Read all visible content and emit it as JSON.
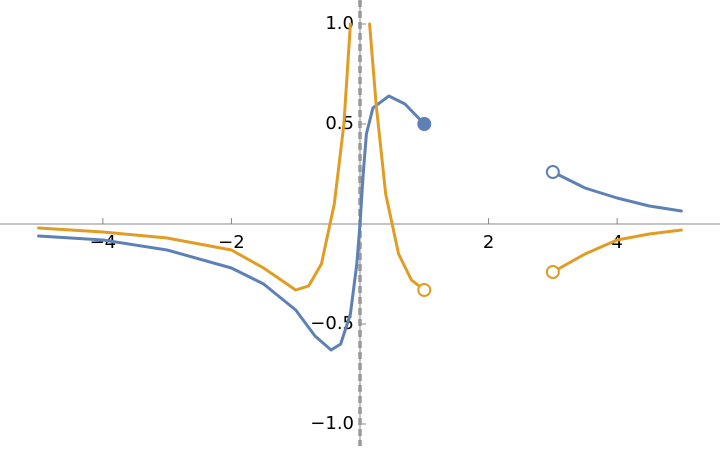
{
  "chart_data": {
    "type": "line",
    "xlim": [
      -5.6,
      5.6
    ],
    "ylim": [
      -1.11,
      1.12
    ],
    "xticks": [
      {
        "value": -4,
        "label": "−4"
      },
      {
        "value": -2,
        "label": "−2"
      },
      2,
      4
    ],
    "yticks": [
      {
        "value": -1.0,
        "label": "−1.0"
      },
      {
        "value": -0.5,
        "label": "−0.5"
      },
      0.5,
      {
        "value": 1.0,
        "label": "1.0"
      }
    ],
    "asymptote_x": 0,
    "series": [
      {
        "color": "#5e81b5",
        "x": [
          -5,
          -4,
          -3,
          -2,
          -1.5,
          -1,
          -0.7,
          -0.45,
          -0.3,
          -0.15,
          -0.05,
          0,
          0.05,
          0.1,
          0.2,
          0.45,
          0.7,
          1,
          2,
          3,
          3.5,
          4,
          4.5,
          5
        ],
        "values": [
          -0.06,
          -0.08,
          -0.13,
          -0.22,
          -0.3,
          -0.43,
          -0.56,
          -0.63,
          -0.6,
          -0.45,
          -0.2,
          0,
          0.25,
          0.45,
          0.58,
          0.64,
          0.6,
          0.5,
          null,
          0.26,
          0.18,
          0.13,
          0.09,
          0.065
        ]
      },
      {
        "color": "#e19c24",
        "x": [
          -5,
          -4,
          -3,
          -2,
          -1.5,
          -1,
          -0.8,
          -0.6,
          -0.4,
          -0.25,
          -0.15,
          0,
          0.15,
          0.25,
          0.4,
          0.6,
          0.8,
          1,
          2,
          3,
          3.5,
          4,
          4.5,
          5
        ],
        "values": [
          -0.02,
          -0.04,
          -0.07,
          -0.13,
          -0.22,
          -0.33,
          -0.31,
          -0.2,
          0.1,
          0.5,
          1.0,
          null,
          1.0,
          0.6,
          0.15,
          -0.15,
          -0.28,
          -0.33,
          null,
          -0.24,
          -0.15,
          -0.08,
          -0.05,
          -0.03
        ]
      }
    ],
    "points": [
      {
        "x": 1,
        "y": 0.5,
        "color": "#5e81b5",
        "filled": true
      },
      {
        "x": 3,
        "y": 0.26,
        "color": "#5e81b5",
        "filled": false
      },
      {
        "x": 1,
        "y": -0.33,
        "color": "#e19c24",
        "filled": false
      },
      {
        "x": 3,
        "y": -0.24,
        "color": "#e19c24",
        "filled": false
      }
    ]
  }
}
